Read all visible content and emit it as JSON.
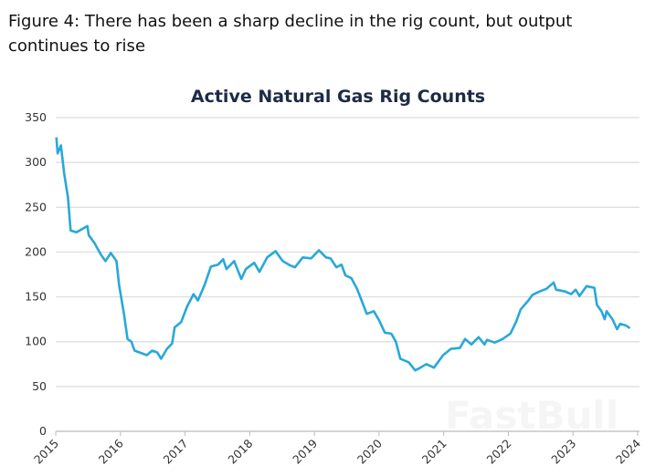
{
  "figure_title": "Figure 4: There has been a sharp decline in the rig count, but output continues to rise",
  "watermark": "FastBull",
  "chart_data": {
    "type": "line",
    "title": "Active Natural Gas Rig Counts",
    "xlabel": "",
    "ylabel": "",
    "xlim": [
      2015,
      2024
    ],
    "ylim": [
      0,
      350
    ],
    "x_ticks": [
      "2015",
      "2016",
      "2017",
      "2018",
      "2019",
      "2020",
      "2021",
      "2022",
      "2023",
      "2024"
    ],
    "y_ticks": [
      "0",
      "50",
      "100",
      "150",
      "200",
      "250",
      "300",
      "350"
    ],
    "grid": "horizontal",
    "line_color": "#29a8d8",
    "x": [
      2015.01,
      2015.03,
      2015.08,
      2015.13,
      2015.19,
      2015.23,
      2015.32,
      2015.49,
      2015.51,
      2015.6,
      2015.7,
      2015.77,
      2015.85,
      2015.94,
      2015.98,
      2016.06,
      2016.11,
      2016.17,
      2016.22,
      2016.41,
      2016.49,
      2016.57,
      2016.63,
      2016.72,
      2016.8,
      2016.84,
      2016.94,
      2017.03,
      2017.13,
      2017.2,
      2017.3,
      2017.4,
      2017.51,
      2017.59,
      2017.64,
      2017.76,
      2017.87,
      2017.94,
      2018.07,
      2018.15,
      2018.27,
      2018.4,
      2018.51,
      2018.63,
      2018.7,
      2018.82,
      2018.95,
      2019.07,
      2019.18,
      2019.25,
      2019.34,
      2019.42,
      2019.48,
      2019.57,
      2019.66,
      2019.73,
      2019.81,
      2019.92,
      2020.0,
      2020.09,
      2020.19,
      2020.26,
      2020.33,
      2020.46,
      2020.56,
      2020.64,
      2020.73,
      2020.85,
      2020.99,
      2021.11,
      2021.25,
      2021.33,
      2021.43,
      2021.54,
      2021.63,
      2021.67,
      2021.79,
      2021.91,
      2022.03,
      2022.12,
      2022.19,
      2022.31,
      2022.37,
      2022.48,
      2022.59,
      2022.7,
      2022.74,
      2022.88,
      2022.97,
      2023.04,
      2023.1,
      2023.21,
      2023.33,
      2023.37,
      2023.44,
      2023.49,
      2023.52,
      2023.61,
      2023.68,
      2023.73,
      2023.82,
      2023.88
    ],
    "y": [
      328,
      310,
      319,
      288,
      261,
      224,
      222,
      229,
      219,
      210,
      197,
      190,
      199,
      190,
      163,
      129,
      103,
      100,
      90,
      85,
      90,
      88,
      81,
      92,
      98,
      116,
      122,
      139,
      153,
      146,
      163,
      184,
      186,
      192,
      181,
      190,
      170,
      181,
      188,
      178,
      194,
      201,
      190,
      185,
      183,
      194,
      193,
      202,
      194,
      193,
      183,
      186,
      174,
      171,
      159,
      146,
      131,
      134,
      124,
      110,
      109,
      100,
      81,
      77,
      68,
      71,
      75,
      71,
      85,
      92,
      93,
      103,
      97,
      105,
      97,
      102,
      99,
      103,
      109,
      122,
      136,
      146,
      152,
      156,
      159,
      166,
      158,
      156,
      153,
      158,
      151,
      162,
      160,
      141,
      134,
      125,
      134,
      125,
      114,
      120,
      118,
      115
    ]
  }
}
